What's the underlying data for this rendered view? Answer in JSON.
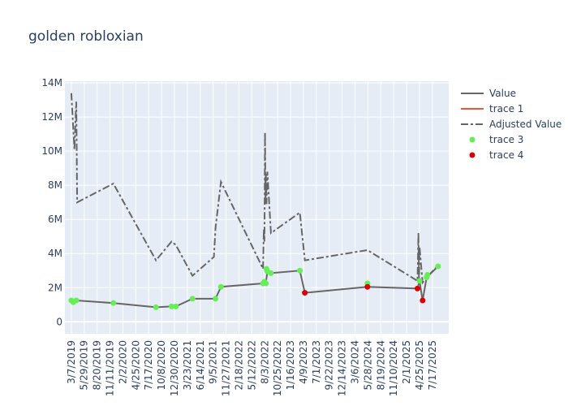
{
  "chart_data": {
    "type": "line",
    "title": "golden robloxian",
    "x_tick_labels": [
      "3/7/2019",
      "5/29/2019",
      "8/20/2019",
      "11/11/2019",
      "2/2/2020",
      "4/25/2020",
      "7/17/2020",
      "10/8/2020",
      "12/30/2020",
      "3/23/2021",
      "6/14/2021",
      "9/5/2021",
      "11/27/2021",
      "2/18/2022",
      "5/12/2022",
      "8/3/2022",
      "10/25/2022",
      "1/16/2023",
      "4/9/2023",
      "7/1/2023",
      "9/22/2023",
      "12/14/2023",
      "3/6/2024",
      "5/28/2024",
      "8/19/2024",
      "11/10/2024",
      "2/1/2025",
      "4/25/2025",
      "7/17/2025"
    ],
    "y_ticks": [
      0,
      2000000,
      4000000,
      6000000,
      8000000,
      10000000,
      12000000,
      14000000
    ],
    "y_tick_labels": [
      "0",
      "2M",
      "4M",
      "6M",
      "8M",
      "10M",
      "12M",
      "14M"
    ],
    "ylim": [
      -700000,
      14100000
    ],
    "xlim": [
      "2019-01-25",
      "2025-10-30"
    ],
    "grid": true,
    "legend_position": "top-right",
    "series": [
      {
        "name": "Value",
        "mode": "line",
        "color": "#666666",
        "dash": "solid",
        "points": [
          [
            "2019-03-07",
            1250000
          ],
          [
            "2019-03-20",
            1150000
          ],
          [
            "2019-04-08",
            1250000
          ],
          [
            "2019-12-03",
            1100000
          ],
          [
            "2020-09-02",
            850000
          ],
          [
            "2020-12-11",
            900000
          ],
          [
            "2021-01-08",
            900000
          ],
          [
            "2021-04-25",
            1350000
          ],
          [
            "2021-09-20",
            1350000
          ],
          [
            "2021-10-25",
            2050000
          ],
          [
            "2022-07-23",
            2250000
          ],
          [
            "2022-08-01",
            2350000
          ],
          [
            "2022-08-10",
            2250000
          ],
          [
            "2022-08-20",
            2950000
          ],
          [
            "2022-09-12",
            2850000
          ],
          [
            "2023-03-17",
            3000000
          ],
          [
            "2023-04-18",
            1700000
          ],
          [
            "2024-05-25",
            2050000
          ],
          [
            "2025-04-12",
            1950000
          ],
          [
            "2025-04-25",
            2400000
          ],
          [
            "2025-05-15",
            1250000
          ],
          [
            "2025-06-10",
            2600000
          ],
          [
            "2025-08-22",
            3250000
          ]
        ]
      },
      {
        "name": "trace 1",
        "mode": "line",
        "color": "#ef553b",
        "dash": "solid",
        "points": []
      },
      {
        "name": "Adjusted Value",
        "mode": "line",
        "color": "#666666",
        "dash": "dashdot",
        "points": [
          [
            "2019-03-07",
            13400000
          ],
          [
            "2019-03-27",
            10100000
          ],
          [
            "2019-04-03",
            11800000
          ],
          [
            "2019-04-08",
            12900000
          ],
          [
            "2019-04-14",
            7000000
          ],
          [
            "2019-12-03",
            8100000
          ],
          [
            "2020-09-02",
            3600000
          ],
          [
            "2020-12-11",
            4700000
          ],
          [
            "2021-01-08",
            4500000
          ],
          [
            "2021-04-25",
            2700000
          ],
          [
            "2021-09-10",
            3800000
          ],
          [
            "2021-09-20",
            5500000
          ],
          [
            "2021-10-25",
            8200000
          ],
          [
            "2022-07-23",
            3100000
          ],
          [
            "2022-07-28",
            5400000
          ],
          [
            "2022-08-01",
            4700000
          ],
          [
            "2022-08-05",
            11100000
          ],
          [
            "2022-08-08",
            6900000
          ],
          [
            "2022-08-10",
            8700000
          ],
          [
            "2022-08-14",
            6900000
          ],
          [
            "2022-08-20",
            8800000
          ],
          [
            "2022-09-12",
            5200000
          ],
          [
            "2023-03-17",
            6400000
          ],
          [
            "2023-04-18",
            3600000
          ],
          [
            "2024-05-25",
            4200000
          ],
          [
            "2025-04-12",
            2400000
          ],
          [
            "2025-04-18",
            5200000
          ],
          [
            "2025-04-22",
            2200000
          ],
          [
            "2025-04-25",
            4400000
          ],
          [
            "2025-05-15",
            2300000
          ],
          [
            "2025-06-10",
            2600000
          ],
          [
            "2025-08-22",
            3300000
          ]
        ]
      },
      {
        "name": "trace 3",
        "mode": "markers",
        "color": "#66ee55",
        "points": [
          [
            "2019-03-07",
            1250000
          ],
          [
            "2019-03-20",
            1150000
          ],
          [
            "2019-04-08",
            1250000
          ],
          [
            "2019-12-03",
            1100000
          ],
          [
            "2020-09-02",
            850000
          ],
          [
            "2020-12-11",
            900000
          ],
          [
            "2021-01-08",
            900000
          ],
          [
            "2021-04-25",
            1350000
          ],
          [
            "2021-09-20",
            1350000
          ],
          [
            "2021-10-25",
            2050000
          ],
          [
            "2022-07-23",
            2250000
          ],
          [
            "2022-08-01",
            2350000
          ],
          [
            "2022-08-10",
            2250000
          ],
          [
            "2022-08-14",
            3100000
          ],
          [
            "2022-08-20",
            2950000
          ],
          [
            "2022-09-12",
            2850000
          ],
          [
            "2023-03-17",
            3000000
          ],
          [
            "2024-05-25",
            2250000
          ],
          [
            "2025-04-25",
            2400000
          ],
          [
            "2025-06-10",
            2600000
          ],
          [
            "2025-06-15",
            2750000
          ],
          [
            "2025-08-22",
            3250000
          ]
        ]
      },
      {
        "name": "trace 4",
        "mode": "markers",
        "color": "#dd0000",
        "points": [
          [
            "2023-04-18",
            1700000
          ],
          [
            "2024-05-25",
            2050000
          ],
          [
            "2025-04-12",
            1950000
          ],
          [
            "2025-05-15",
            1250000
          ]
        ]
      }
    ]
  }
}
